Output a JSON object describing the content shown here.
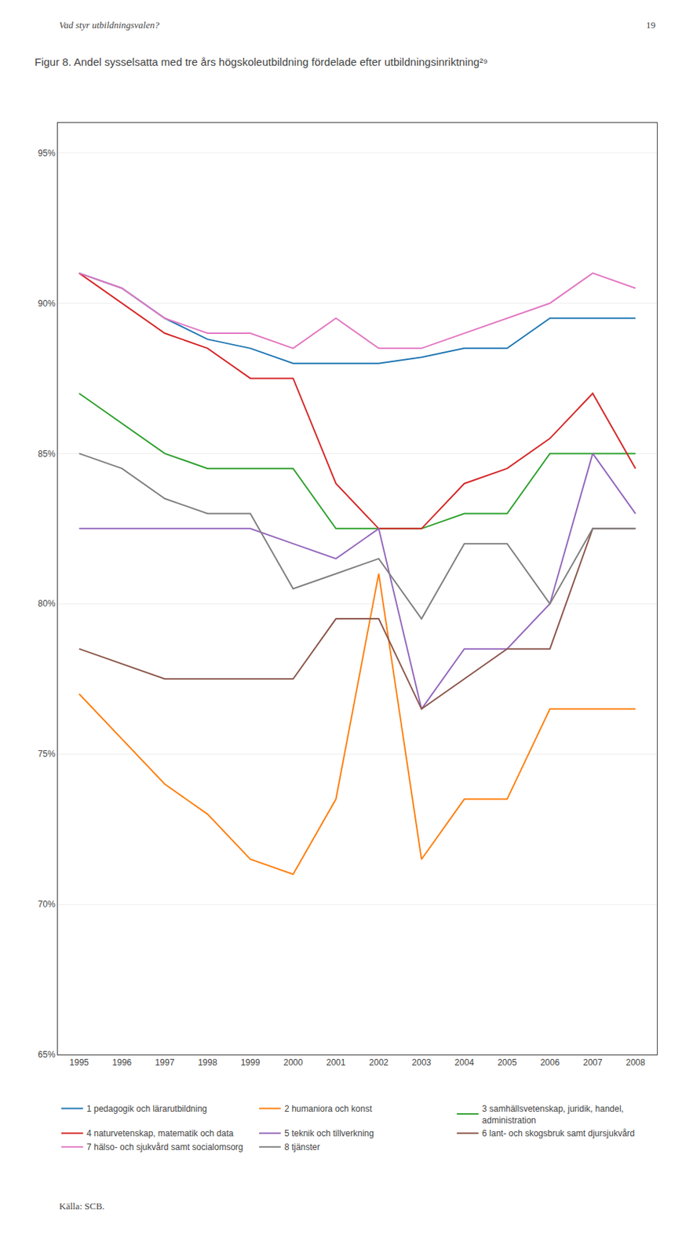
{
  "chart_data": {
    "type": "line",
    "title": "Figur 8. Andel sysselsatta med tre års högskoleutbildning fördelade efter utbildningsinriktning²⁹",
    "annotations": [
      "Vad styr utbildningsvalen?",
      "19",
      "Källa: SCB."
    ],
    "x": [
      1995,
      1996,
      1997,
      1998,
      1999,
      2000,
      2001,
      2002,
      2003,
      2004,
      2005,
      2006,
      2007,
      2008
    ],
    "series": [
      {
        "name": "1 pedagogik och lärarutbildning",
        "values": [
          91.0,
          90.5,
          89.5,
          88.8,
          88.5,
          88.0,
          88.0,
          88.0,
          88.2,
          88.5,
          88.5,
          89.5,
          89.5,
          89.5
        ]
      },
      {
        "name": "2 humaniora och konst",
        "values": [
          77.0,
          75.5,
          74.0,
          73.0,
          71.5,
          71.0,
          73.5,
          81.0,
          71.5,
          73.5,
          73.5,
          76.5,
          76.5,
          76.5
        ]
      },
      {
        "name": "3 samhällsvetenskap, juridik, handel,\nadministration",
        "values": [
          87.0,
          86.0,
          85.0,
          84.5,
          84.5,
          84.5,
          82.5,
          82.5,
          82.5,
          83.0,
          83.0,
          85.0,
          85.0,
          85.0
        ]
      },
      {
        "name": "4 naturvetenskap, matematik och data",
        "values": [
          91.0,
          90.0,
          89.0,
          88.5,
          87.5,
          87.5,
          84.0,
          82.5,
          82.5,
          84.0,
          84.5,
          85.5,
          87.0,
          84.5
        ]
      },
      {
        "name": "5 teknik och tillverkning",
        "values": [
          82.5,
          82.5,
          82.5,
          82.5,
          82.5,
          82.0,
          81.5,
          82.5,
          76.5,
          78.5,
          78.5,
          80.0,
          85.0,
          83.0
        ]
      },
      {
        "name": "6 lant- och skogsbruk samt djursjukvård",
        "values": [
          78.5,
          78.0,
          77.5,
          77.5,
          77.5,
          77.5,
          79.5,
          79.5,
          76.5,
          77.5,
          78.5,
          78.5,
          82.5,
          82.5
        ]
      },
      {
        "name": "7 hälso- och sjukvård samt socialomsorg",
        "values": [
          91.0,
          90.5,
          89.5,
          89.0,
          89.0,
          88.5,
          89.5,
          88.5,
          88.5,
          89.0,
          89.5,
          90.0,
          91.0,
          90.5
        ]
      },
      {
        "name": "8 tjänster",
        "values": [
          85.0,
          84.5,
          83.5,
          83.0,
          83.0,
          80.5,
          81.0,
          81.5,
          79.5,
          82.0,
          82.0,
          80.0,
          82.5,
          82.5
        ]
      }
    ],
    "xlim": [
      1994.5,
      2008.5
    ],
    "xticks": [
      1995,
      1996,
      1997,
      1998,
      1999,
      2000,
      2001,
      2002,
      2003,
      2004,
      2005,
      2006,
      2007,
      2008
    ],
    "ylim": [
      65,
      96
    ],
    "yticks": [
      {
        "value": 65,
        "label": "65%"
      },
      {
        "value": 70,
        "label": "70%"
      },
      {
        "value": 75,
        "label": "75%"
      },
      {
        "value": 80,
        "label": "80%"
      },
      {
        "value": 85,
        "label": "85%"
      },
      {
        "value": 90,
        "label": "90%"
      },
      {
        "value": 95,
        "label": "95%"
      }
    ],
    "grid": "y"
  }
}
